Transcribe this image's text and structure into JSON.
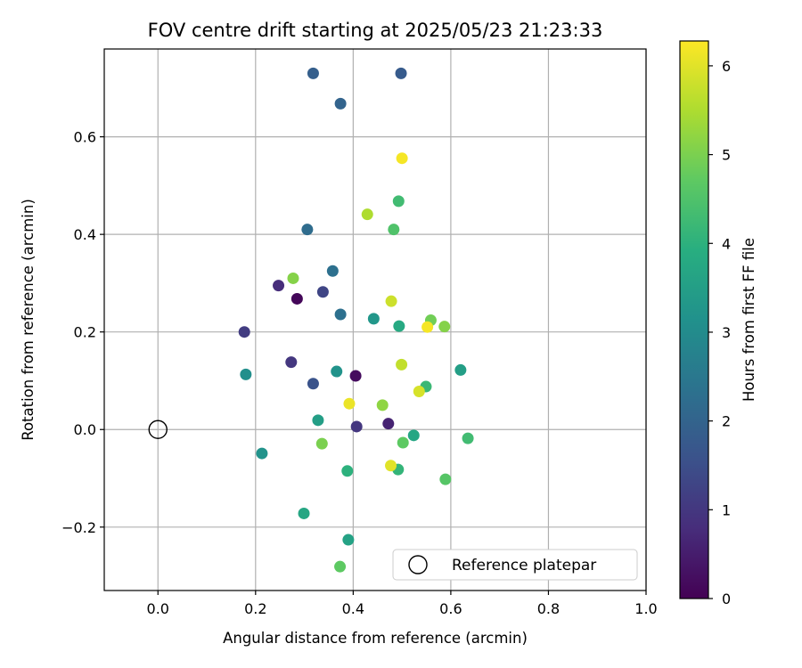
{
  "chart_data": {
    "type": "scatter",
    "title": "FOV centre drift starting at 2025/05/23 21:23:33",
    "xlabel": "Angular distance from reference (arcmin)",
    "ylabel": "Rotation from reference (arcmin)",
    "xlim": [
      -0.11,
      1.0
    ],
    "ylim": [
      -0.33,
      0.78
    ],
    "xticks": [
      0.0,
      0.2,
      0.4,
      0.6,
      0.8,
      1.0
    ],
    "xtick_labels": [
      "0.0",
      "0.2",
      "0.4",
      "0.6",
      "0.8",
      "1.0"
    ],
    "yticks": [
      -0.2,
      0.0,
      0.2,
      0.4,
      0.6
    ],
    "ytick_labels": [
      "−0.2",
      "0.0",
      "0.2",
      "0.4",
      "0.6"
    ],
    "grid": true,
    "colormap": "viridis",
    "colorbar": {
      "label": "Hours from first FF file",
      "range": [
        0,
        6.28
      ],
      "ticks": [
        0,
        1,
        2,
        3,
        4,
        5,
        6
      ],
      "tick_labels": [
        "0",
        "1",
        "2",
        "3",
        "4",
        "5",
        "6"
      ]
    },
    "reference": {
      "x": 0.0,
      "y": 0.0,
      "label": "Reference platepar"
    },
    "legend_position": "lower right",
    "points": [
      {
        "x": 0.285,
        "y": 0.268,
        "c": 0.1
      },
      {
        "x": 0.405,
        "y": 0.11,
        "c": 0.2
      },
      {
        "x": 0.472,
        "y": 0.012,
        "c": 0.6
      },
      {
        "x": 0.247,
        "y": 0.295,
        "c": 0.8
      },
      {
        "x": 0.407,
        "y": 0.006,
        "c": 1.0
      },
      {
        "x": 0.273,
        "y": 0.138,
        "c": 1.0
      },
      {
        "x": 0.177,
        "y": 0.2,
        "c": 1.1
      },
      {
        "x": 0.338,
        "y": 0.282,
        "c": 1.3
      },
      {
        "x": 0.318,
        "y": 0.094,
        "c": 1.6
      },
      {
        "x": 0.318,
        "y": 0.73,
        "c": 1.9
      },
      {
        "x": 0.498,
        "y": 0.73,
        "c": 1.8
      },
      {
        "x": 0.374,
        "y": 0.668,
        "c": 2.0
      },
      {
        "x": 0.306,
        "y": 0.41,
        "c": 2.2
      },
      {
        "x": 0.358,
        "y": 0.325,
        "c": 2.3
      },
      {
        "x": 0.374,
        "y": 0.236,
        "c": 2.3
      },
      {
        "x": 0.18,
        "y": 0.113,
        "c": 3.1
      },
      {
        "x": 0.366,
        "y": 0.119,
        "c": 3.2
      },
      {
        "x": 0.213,
        "y": -0.049,
        "c": 3.2
      },
      {
        "x": 0.442,
        "y": 0.227,
        "c": 3.3
      },
      {
        "x": 0.328,
        "y": 0.019,
        "c": 3.5
      },
      {
        "x": 0.62,
        "y": 0.122,
        "c": 3.5
      },
      {
        "x": 0.39,
        "y": -0.226,
        "c": 3.6
      },
      {
        "x": 0.299,
        "y": -0.172,
        "c": 3.7
      },
      {
        "x": 0.524,
        "y": -0.012,
        "c": 3.7
      },
      {
        "x": 0.494,
        "y": 0.212,
        "c": 3.8
      },
      {
        "x": 0.388,
        "y": -0.085,
        "c": 4.0
      },
      {
        "x": 0.492,
        "y": -0.082,
        "c": 4.1
      },
      {
        "x": 0.549,
        "y": 0.088,
        "c": 4.2
      },
      {
        "x": 0.635,
        "y": -0.018,
        "c": 4.3
      },
      {
        "x": 0.493,
        "y": 0.468,
        "c": 4.3
      },
      {
        "x": 0.483,
        "y": 0.41,
        "c": 4.5
      },
      {
        "x": 0.589,
        "y": -0.102,
        "c": 4.6
      },
      {
        "x": 0.373,
        "y": -0.281,
        "c": 4.7
      },
      {
        "x": 0.502,
        "y": -0.027,
        "c": 4.7
      },
      {
        "x": 0.559,
        "y": 0.224,
        "c": 4.9
      },
      {
        "x": 0.336,
        "y": -0.029,
        "c": 5.0
      },
      {
        "x": 0.277,
        "y": 0.31,
        "c": 5.1
      },
      {
        "x": 0.587,
        "y": 0.211,
        "c": 5.1
      },
      {
        "x": 0.46,
        "y": 0.05,
        "c": 5.2
      },
      {
        "x": 0.429,
        "y": 0.441,
        "c": 5.5
      },
      {
        "x": 0.499,
        "y": 0.133,
        "c": 5.7
      },
      {
        "x": 0.478,
        "y": 0.263,
        "c": 5.8
      },
      {
        "x": 0.535,
        "y": 0.078,
        "c": 5.9
      },
      {
        "x": 0.477,
        "y": -0.074,
        "c": 6.0
      },
      {
        "x": 0.392,
        "y": 0.053,
        "c": 6.1
      },
      {
        "x": 0.552,
        "y": 0.21,
        "c": 6.2
      },
      {
        "x": 0.5,
        "y": 0.556,
        "c": 6.2
      }
    ]
  }
}
